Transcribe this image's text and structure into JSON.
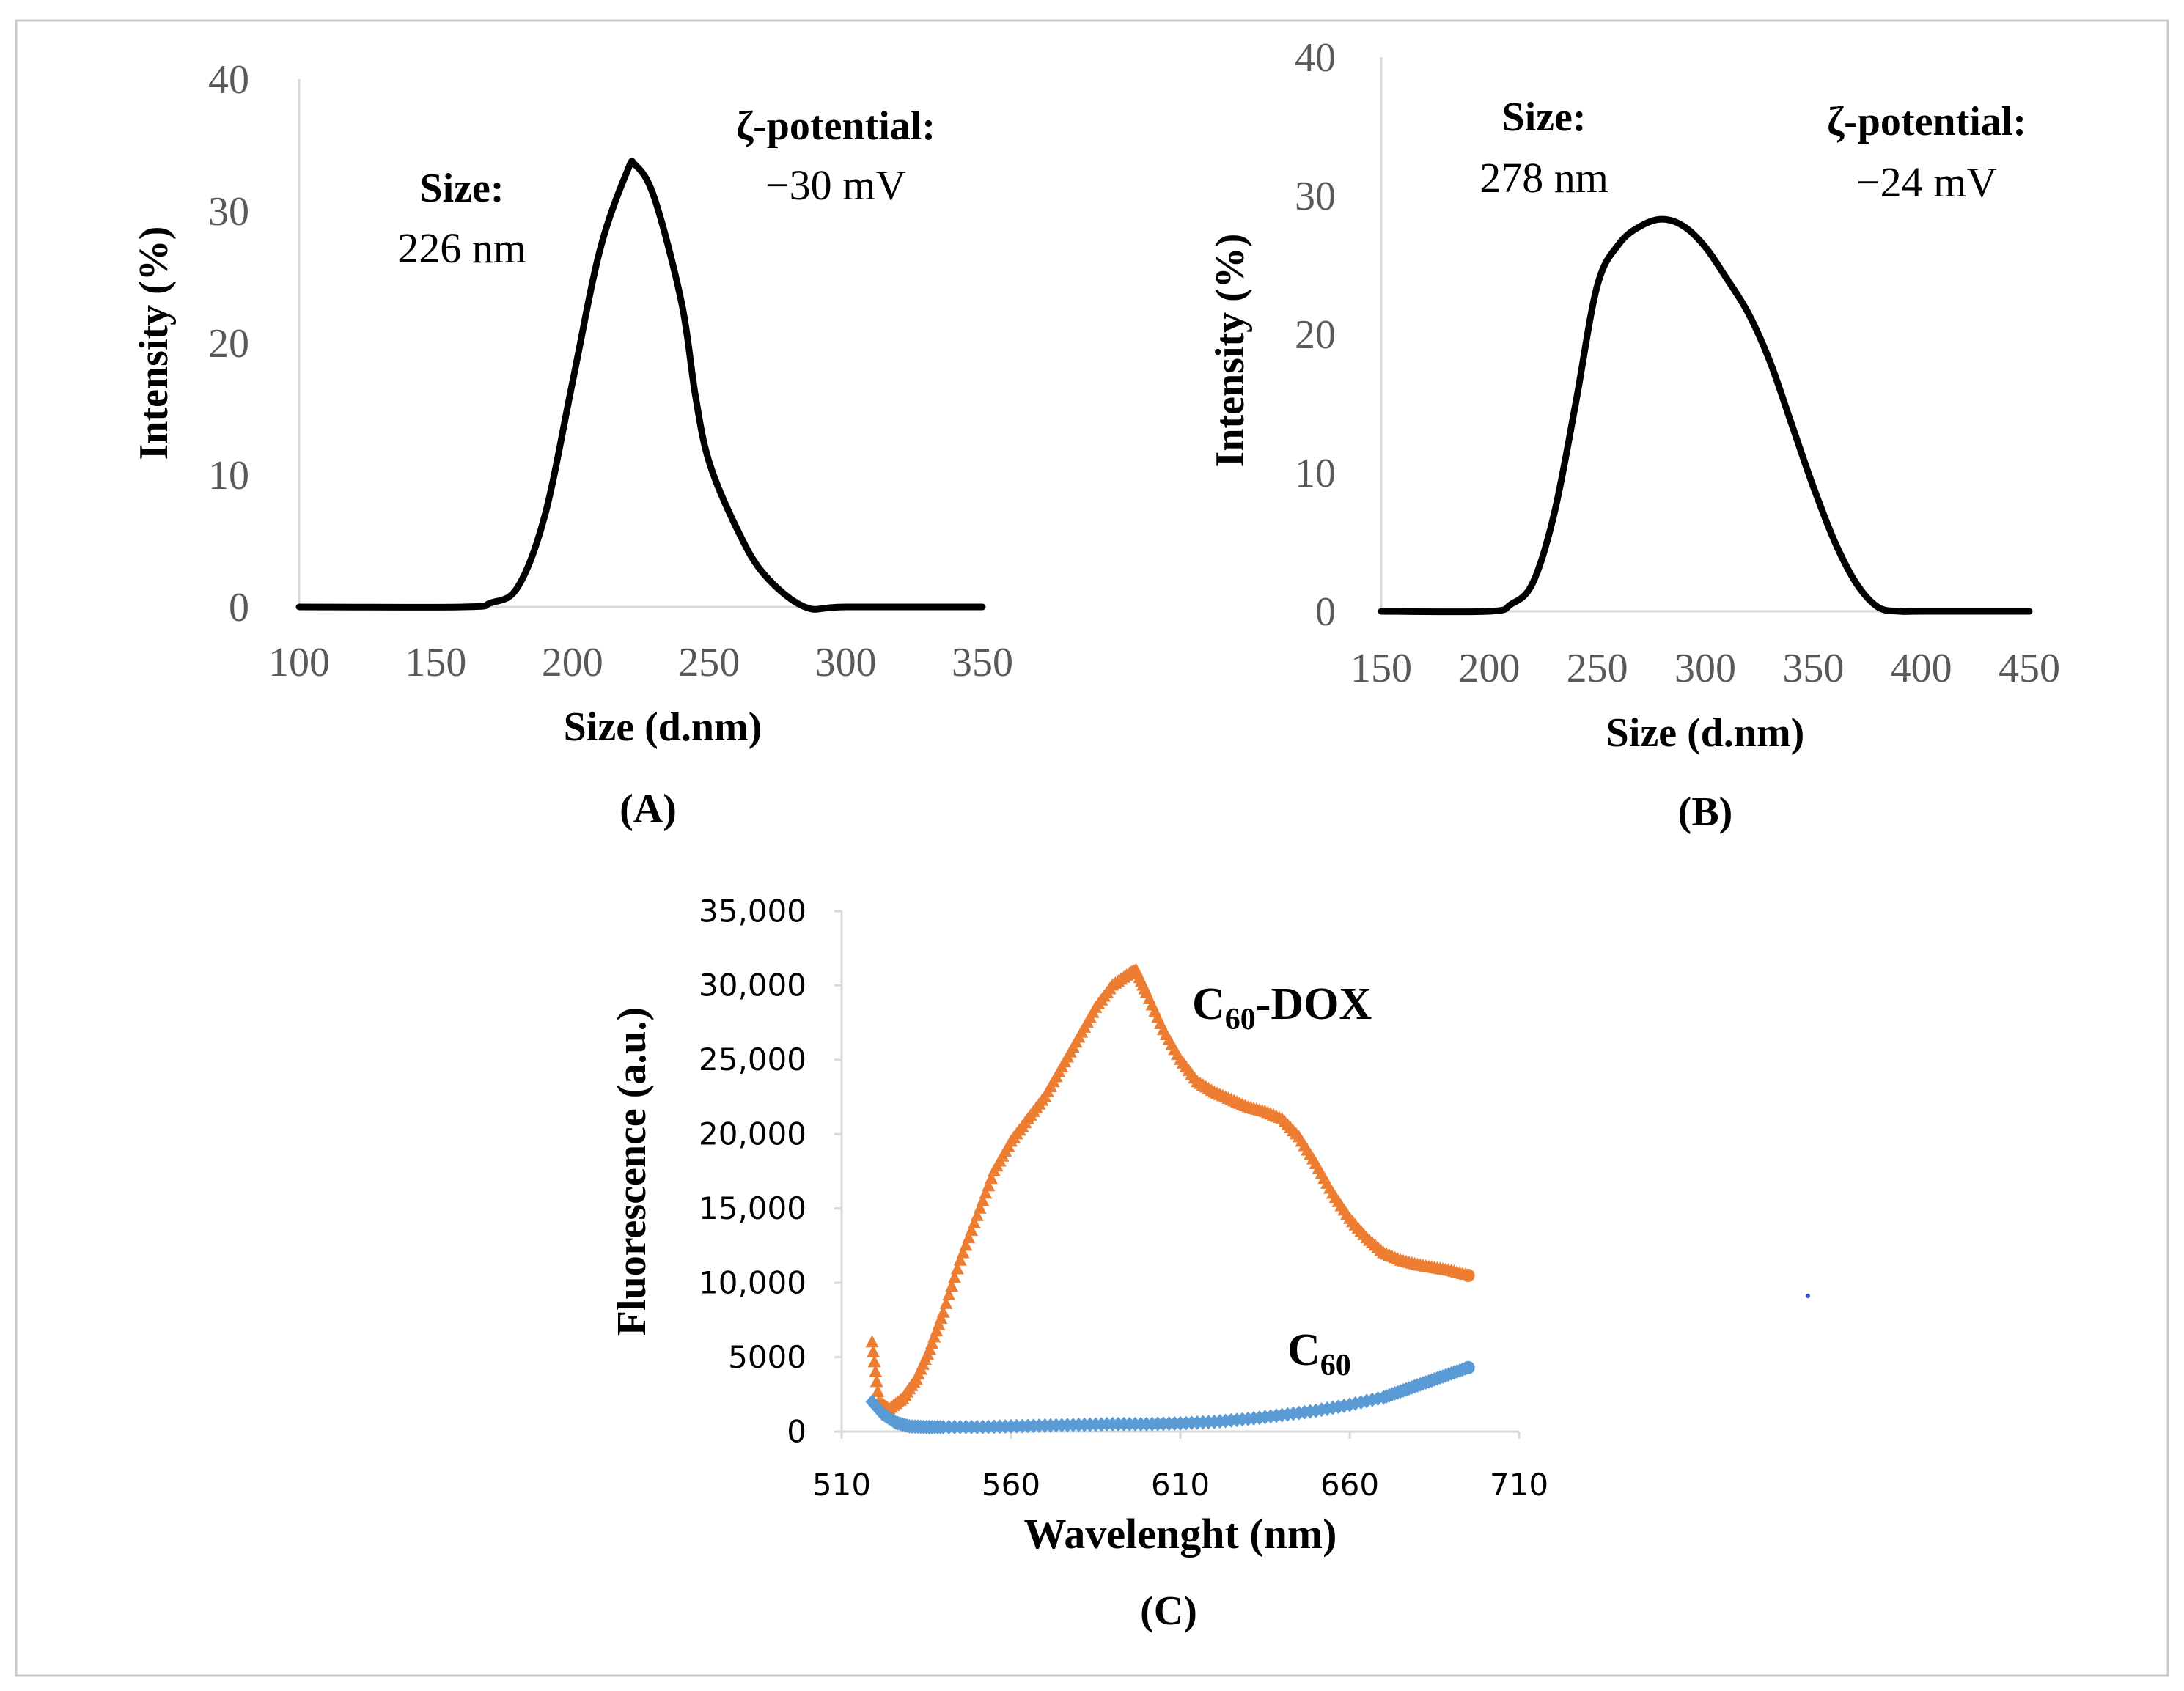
{
  "chart_data": [
    {
      "id": "A",
      "type": "line",
      "panel_label": "(A)",
      "xlabel": "Size (d.nm)",
      "ylabel": "Intensity (%)",
      "xlim": [
        100,
        350
      ],
      "ylim": [
        0,
        40
      ],
      "xticks": [
        100,
        150,
        200,
        250,
        300,
        350
      ],
      "yticks": [
        0,
        10,
        20,
        30,
        40
      ],
      "grid": false,
      "annotations": {
        "size_label": "Size:",
        "size_value": "226 nm",
        "zeta_label": "ζ-potential:",
        "zeta_value": "−30 mV"
      },
      "series": [
        {
          "name": "Intensity",
          "color": "#000000",
          "x": [
            100,
            160,
            170,
            180,
            190,
            200,
            210,
            220,
            223,
            230,
            240,
            245,
            250,
            260,
            270,
            285,
            300,
            350
          ],
          "y": [
            0,
            0,
            0.3,
            1.5,
            7,
            17,
            27,
            33,
            33.5,
            31,
            23,
            16,
            11,
            6,
            2.5,
            0,
            0,
            0
          ]
        }
      ]
    },
    {
      "id": "B",
      "type": "line",
      "panel_label": "(B)",
      "xlabel": "Size (d.nm)",
      "ylabel": "Intensity (%)",
      "xlim": [
        150,
        450
      ],
      "ylim": [
        0,
        40
      ],
      "xticks": [
        150,
        200,
        250,
        300,
        350,
        400,
        450
      ],
      "yticks": [
        0,
        10,
        20,
        30,
        40
      ],
      "grid": false,
      "annotations": {
        "size_label": "Size:",
        "size_value": "278 nm",
        "zeta_label": "ζ-potential:",
        "zeta_value": "−24 mV"
      },
      "series": [
        {
          "name": "Intensity",
          "color": "#000000",
          "x": [
            150,
            200,
            210,
            220,
            230,
            240,
            250,
            260,
            270,
            280,
            290,
            300,
            310,
            320,
            330,
            340,
            350,
            360,
            370,
            380,
            390,
            400,
            450
          ],
          "y": [
            0,
            0,
            0.5,
            2,
            7,
            15,
            23.5,
            26.5,
            27.8,
            28.3,
            27.8,
            26.3,
            24,
            21.5,
            18,
            13.5,
            9,
            5,
            2,
            0.3,
            0,
            0,
            0
          ]
        }
      ]
    },
    {
      "id": "C",
      "type": "scatter",
      "panel_label": "(C)",
      "xlabel": "Wavelenght (nm)",
      "ylabel": "Fluorescence  (a.u.)",
      "xlim": [
        510,
        710
      ],
      "ylim": [
        0,
        35000
      ],
      "xticks": [
        510,
        560,
        610,
        660,
        710
      ],
      "yticks": [
        0,
        5000,
        10000,
        15000,
        20000,
        25000,
        30000,
        35000
      ],
      "ytick_labels": [
        "0",
        "5000",
        "10,000",
        "15,000",
        "20,000",
        "25,000",
        "30,000",
        "35,000"
      ],
      "grid": false,
      "series": [
        {
          "name": "C60-DOX",
          "label_main": "C",
          "label_sub": "60",
          "label_suffix": "-DOX",
          "color": "#ed7d31",
          "marker": "triangle",
          "x": [
            519,
            521,
            524,
            528,
            532,
            536,
            540,
            545,
            550,
            555,
            560,
            565,
            570,
            575,
            580,
            585,
            590,
            595,
            597,
            600,
            605,
            610,
            615,
            620,
            625,
            630,
            635,
            640,
            645,
            650,
            655,
            660,
            665,
            670,
            675,
            680,
            685,
            690,
            695
          ],
          "y": [
            6000,
            2000,
            1500,
            2200,
            3500,
            5500,
            8000,
            11500,
            14500,
            17500,
            19500,
            21000,
            22500,
            24500,
            26500,
            28500,
            30000,
            30800,
            31000,
            29500,
            27000,
            25000,
            23500,
            22800,
            22300,
            21800,
            21500,
            21000,
            19800,
            18000,
            16000,
            14300,
            13000,
            12000,
            11500,
            11200,
            11000,
            10800,
            10500
          ]
        },
        {
          "name": "C60",
          "label_main": "C",
          "label_sub": "60",
          "label_suffix": "",
          "color": "#5b9bd5",
          "marker": "diamond",
          "x": [
            519,
            522,
            526,
            530,
            535,
            540,
            550,
            560,
            570,
            580,
            590,
            600,
            610,
            620,
            630,
            640,
            650,
            660,
            670,
            675,
            680,
            685,
            690,
            695
          ],
          "y": [
            2000,
            1200,
            600,
            350,
            300,
            300,
            300,
            350,
            400,
            450,
            500,
            500,
            550,
            650,
            850,
            1100,
            1400,
            1800,
            2300,
            2700,
            3100,
            3500,
            3900,
            4300
          ]
        }
      ]
    }
  ]
}
